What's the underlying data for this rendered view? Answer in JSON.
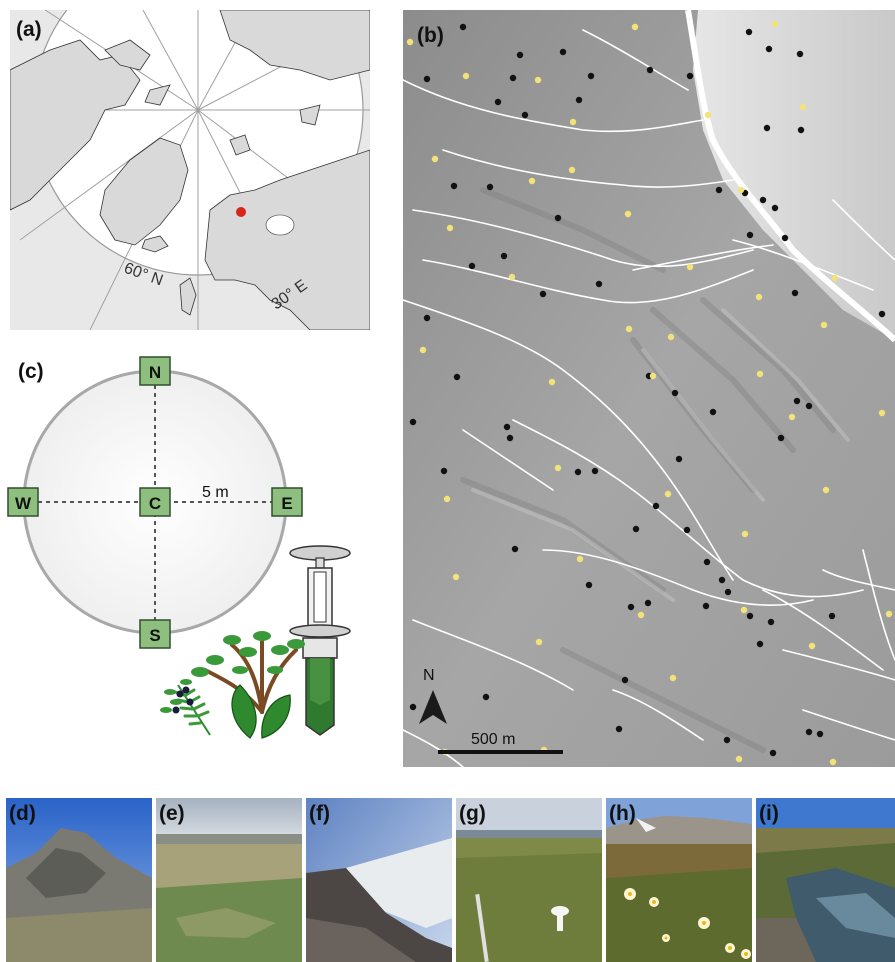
{
  "panels": {
    "a": {
      "label": "(a)",
      "lat_label": "60° N",
      "lon_label": "30° E"
    },
    "b": {
      "label": "(b)",
      "north_label": "N",
      "scalebar_label": "500 m"
    },
    "c": {
      "label": "(c)",
      "points": {
        "n": "N",
        "s": "S",
        "w": "W",
        "e": "E",
        "c": "C"
      },
      "radius_label": "5 m"
    },
    "photos": [
      {
        "label": "(d)"
      },
      {
        "label": "(e)"
      },
      {
        "label": "(f)"
      },
      {
        "label": "(g)"
      },
      {
        "label": "(h)"
      },
      {
        "label": "(i)"
      }
    ]
  },
  "colors": {
    "study_site": "#d7261e",
    "plot_black": "#111111",
    "plot_yellow": "#f3e27a",
    "stream": "#ffffff",
    "marker_fill": "#8fbf7f",
    "marker_stroke": "#2f4f2f"
  }
}
